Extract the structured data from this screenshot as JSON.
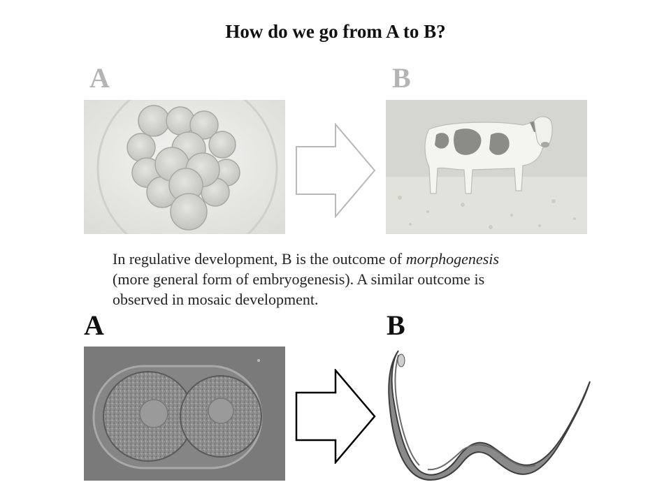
{
  "slide": {
    "title": "How do we go from A to B?",
    "top_row": {
      "label_a": "A",
      "label_b": "B",
      "image_a": "early-embryo-cell-cluster",
      "image_b": "holstein-cow-in-field",
      "arrow": "outline-arrow-right"
    },
    "paragraph": {
      "line1_pre": "In regulative development, B is the outcome of ",
      "line1_em": "morphogenesis",
      "line2": "(more general form of embryogenesis). A similar outcome is",
      "line3": "observed in mosaic development."
    },
    "bottom_row": {
      "label_a": "A",
      "label_b": "B",
      "image_a": "two-cell-embryo",
      "image_b": "nematode-worm",
      "arrow": "outline-arrow-right"
    }
  }
}
